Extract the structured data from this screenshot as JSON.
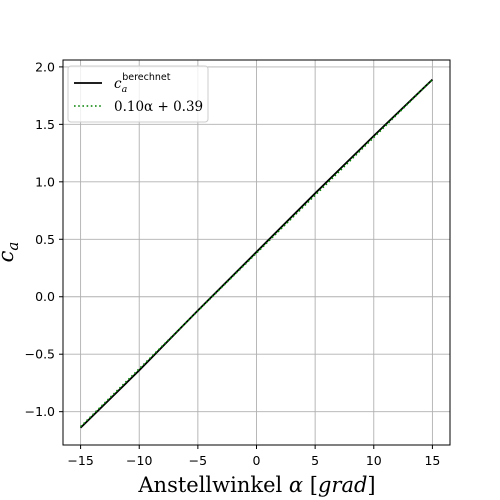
{
  "chart_data": {
    "type": "line",
    "x_label": {
      "main": "Anstellwinkel ",
      "symbol": "α",
      "unit_open": " [",
      "unit": "grad",
      "unit_close": "]"
    },
    "y_label": {
      "main": "c",
      "sub": "a"
    },
    "xlim": [
      -16.5,
      16.5
    ],
    "ylim": [
      -1.29,
      2.06
    ],
    "x_ticks": [
      -15,
      -10,
      -5,
      0,
      5,
      10,
      15
    ],
    "x_tick_labels": [
      "−15",
      "−10",
      "−5",
      "0",
      "5",
      "10",
      "15"
    ],
    "y_ticks": [
      -1.0,
      -0.5,
      0.0,
      0.5,
      1.0,
      1.5,
      2.0
    ],
    "y_tick_labels": [
      "−1.0",
      "−0.5",
      "0.0",
      "0.5",
      "1.0",
      "1.5",
      "2.0"
    ],
    "grid": true,
    "legend_position": "top-left",
    "series": [
      {
        "name": {
          "main": "c",
          "sub": "a",
          "sup": "berechnet"
        },
        "style": "solid",
        "color": "#000000",
        "x": [
          -15,
          -10,
          -5,
          0,
          5,
          10,
          15
        ],
        "y": [
          -1.14,
          -0.64,
          -0.12,
          0.39,
          0.9,
          1.4,
          1.89
        ]
      },
      {
        "name": {
          "text": "0.10α + 0.39"
        },
        "style": "dotted",
        "color": "#008000",
        "x": [
          -15,
          15
        ],
        "y": [
          -1.13,
          1.89
        ]
      }
    ]
  }
}
